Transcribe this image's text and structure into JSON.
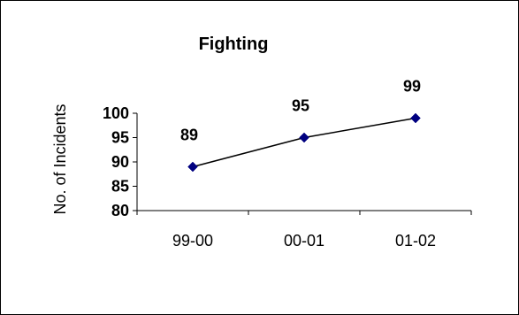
{
  "chart_data": {
    "type": "line",
    "title": "Fighting",
    "xlabel": "",
    "ylabel": "No. of Incidents",
    "categories": [
      "99-00",
      "00-01",
      "01-02"
    ],
    "values": [
      89,
      95,
      99
    ],
    "data_labels": [
      "89",
      "95",
      "99"
    ],
    "ylim": [
      80,
      100
    ],
    "yticks": [
      80,
      85,
      90,
      95,
      100
    ],
    "grid": false,
    "legend": "none",
    "marker": "diamond",
    "line_color": "#000000",
    "marker_color": "#000080"
  }
}
